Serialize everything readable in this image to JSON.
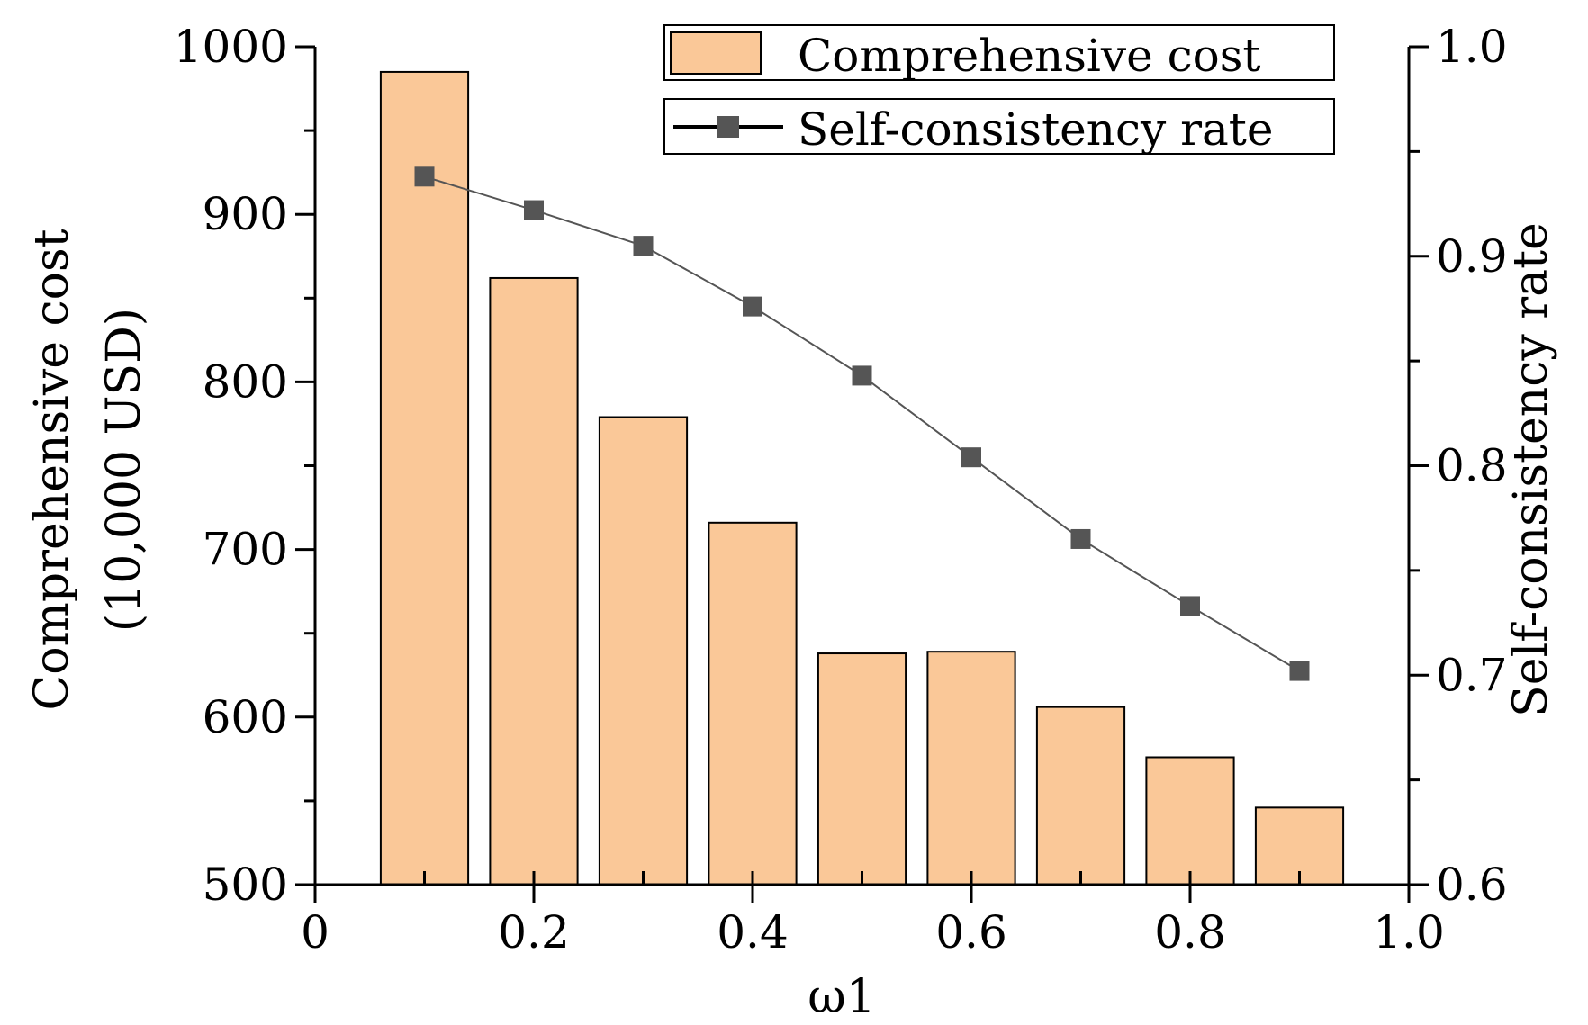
{
  "chart_data": {
    "type": "bar",
    "title": "",
    "xlabel": "ω1",
    "ylabel_left_line1": "Comprehensive cost",
    "ylabel_left_line2": "(10,000 USD)",
    "ylabel_right": "Self-consistency rate",
    "x": [
      0.1,
      0.2,
      0.3,
      0.4,
      0.5,
      0.6,
      0.7,
      0.8,
      0.9
    ],
    "xlim": [
      0,
      1.0
    ],
    "x_ticks": [
      0,
      0.2,
      0.4,
      0.6,
      0.8,
      1.0
    ],
    "x_tick_labels": [
      "0",
      "0.2",
      "0.4",
      "0.6",
      "0.8",
      "1.0"
    ],
    "ylim_left": [
      500,
      1000
    ],
    "y_left_ticks": [
      500,
      600,
      700,
      800,
      900,
      1000
    ],
    "y_left_tick_labels": [
      "500",
      "600",
      "700",
      "800",
      "900",
      "1000"
    ],
    "ylim_right": [
      0.6,
      1.0
    ],
    "y_right_ticks": [
      0.6,
      0.7,
      0.8,
      0.9,
      1.0
    ],
    "y_right_tick_labels": [
      "0.6",
      "0.7",
      "0.8",
      "0.9",
      "1.0"
    ],
    "series": [
      {
        "name": "Comprehensive cost",
        "type": "bar",
        "axis": "left",
        "color": "#fac898",
        "values": [
          985,
          862,
          779,
          716,
          638,
          639,
          606,
          576,
          546
        ]
      },
      {
        "name": "Self-consistency rate",
        "type": "line",
        "axis": "right",
        "color": "#555555",
        "marker": "square",
        "values": [
          0.938,
          0.922,
          0.905,
          0.876,
          0.843,
          0.804,
          0.765,
          0.733,
          0.702
        ]
      }
    ],
    "legend_position": "top-right",
    "grid": false
  }
}
